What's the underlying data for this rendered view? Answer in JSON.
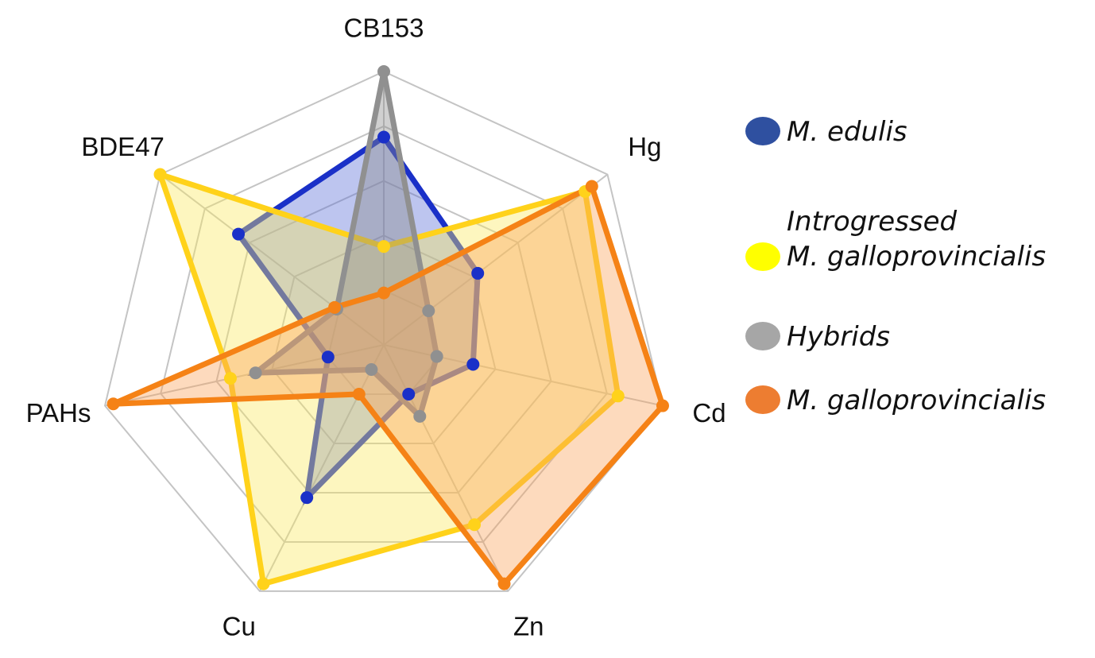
{
  "chart_data": {
    "type": "radar",
    "categories": [
      "CB153",
      "Hg",
      "Cd",
      "Zn",
      "Cu",
      "PAHs",
      "BDE47"
    ],
    "rlim": [
      0,
      1
    ],
    "rticks": [
      0.2,
      0.4,
      0.6,
      0.8,
      1
    ],
    "grid": true,
    "series": [
      {
        "name": "M. edulis",
        "color": "#2f50a0",
        "line_color": "#1a30c8",
        "fill_color": "#5a6ed8",
        "values": [
          0.76,
          0.42,
          0.32,
          0.2,
          0.62,
          0.2,
          0.65
        ]
      },
      {
        "name": "Introgressed M. galloprovincialis",
        "color": "#ffff00",
        "line_color": "#ffd21a",
        "fill_color": "#fbe860",
        "values": [
          0.36,
          0.9,
          0.84,
          0.73,
          0.97,
          0.55,
          1.0
        ]
      },
      {
        "name": "Hybrids",
        "color": "#a6a6a6",
        "line_color": "#909090",
        "fill_color": "#8a8a8a",
        "values": [
          1.0,
          0.2,
          0.19,
          0.29,
          0.1,
          0.46,
          0.21
        ]
      },
      {
        "name": "M. galloprovincialis",
        "color": "#ed7d31",
        "line_color": "#f58216",
        "fill_color": "#f9a25a",
        "values": [
          0.19,
          0.93,
          1.0,
          0.97,
          0.2,
          0.97,
          0.22
        ]
      }
    ]
  }
}
